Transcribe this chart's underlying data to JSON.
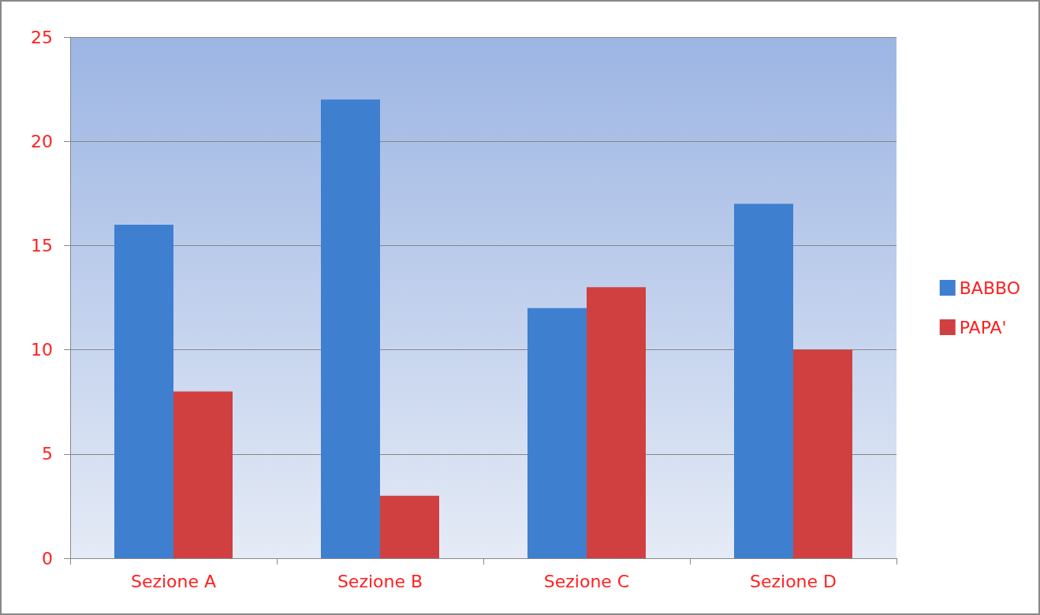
{
  "chart_data": {
    "type": "bar",
    "categories": [
      "Sezione A",
      "Sezione B",
      "Sezione C",
      "Sezione D"
    ],
    "series": [
      {
        "name": "BABBO",
        "color": "#3f7fcf",
        "values": [
          16,
          22,
          12,
          17
        ]
      },
      {
        "name": "PAPA'",
        "color": "#d04040",
        "values": [
          8,
          3,
          13,
          10
        ]
      }
    ],
    "ylim": [
      0,
      25
    ],
    "yticks": [
      0,
      5,
      10,
      15,
      20,
      25
    ],
    "grid": "y",
    "legend": "right"
  }
}
